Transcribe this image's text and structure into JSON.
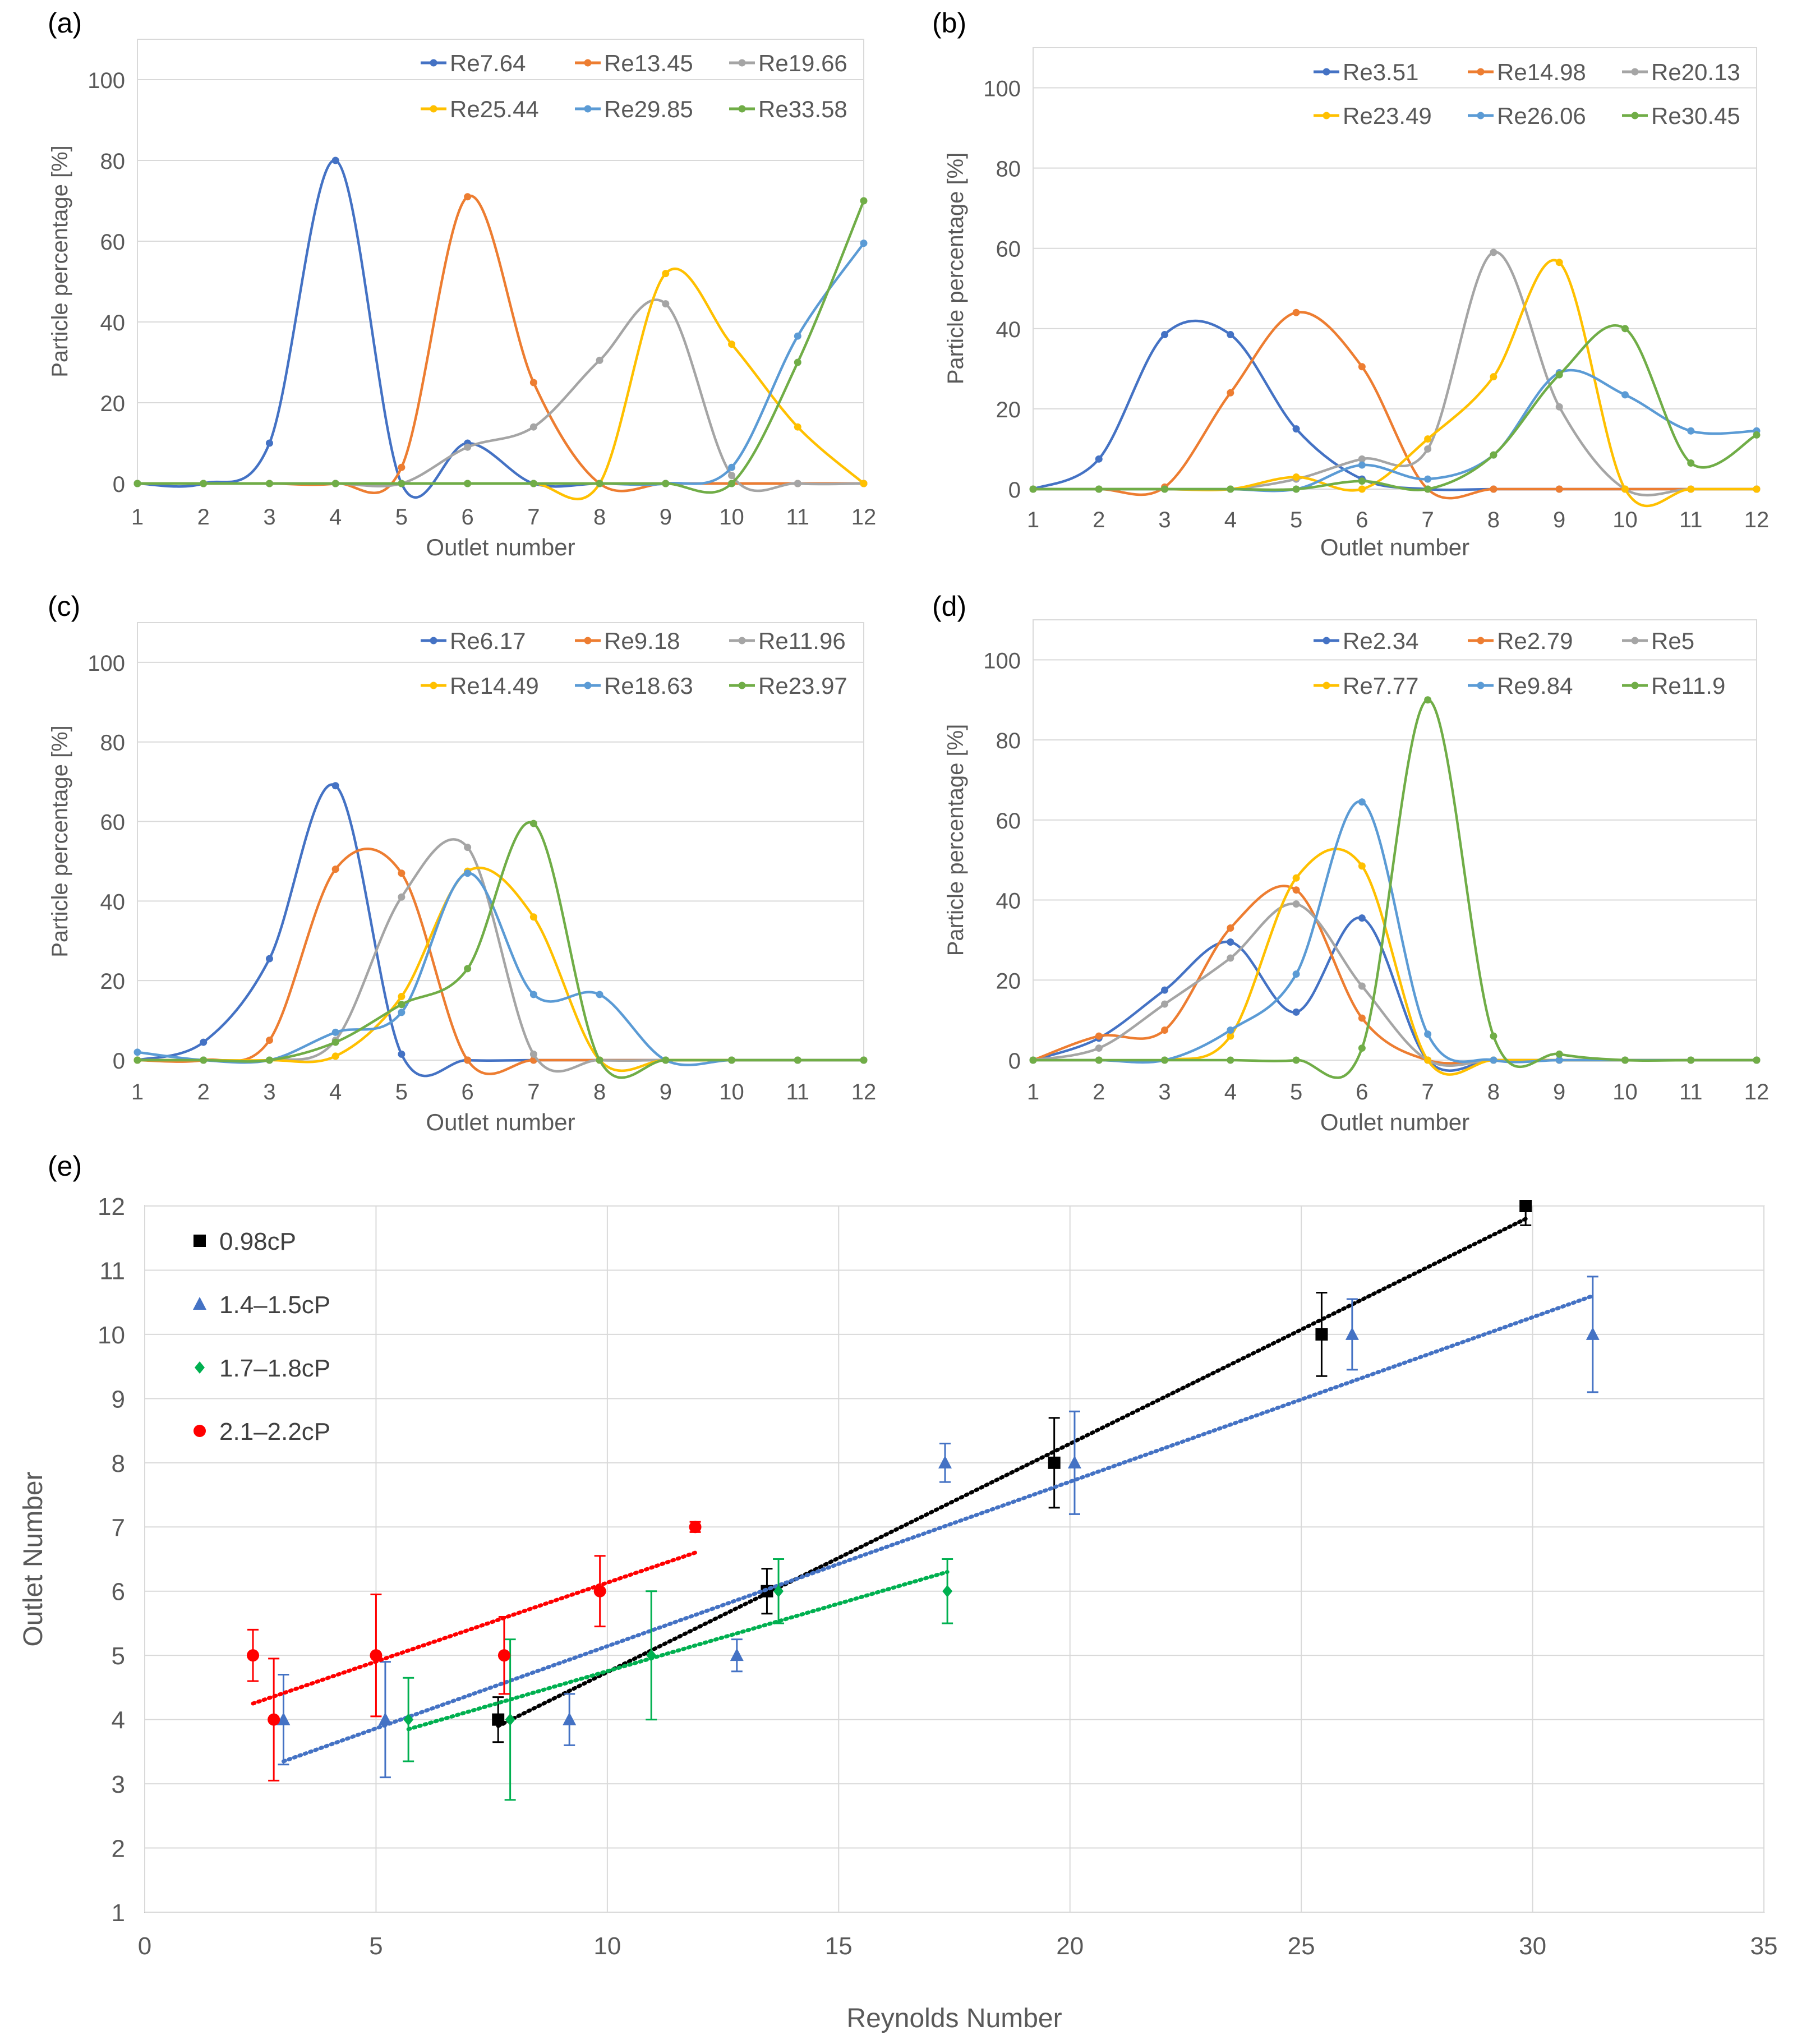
{
  "chart_data": [
    {
      "id": "a",
      "type": "line",
      "panel_label": "(a)",
      "xlabel": "Outlet number",
      "ylabel": "Particle percentage [%]",
      "xlim": [
        1,
        12
      ],
      "ylim": [
        0,
        110
      ],
      "xticks": [
        1,
        2,
        3,
        4,
        5,
        6,
        7,
        8,
        9,
        10,
        11,
        12
      ],
      "yticks": [
        0,
        20,
        40,
        60,
        80,
        100
      ],
      "x": [
        1,
        2,
        3,
        4,
        5,
        6,
        7,
        8,
        9,
        10,
        11,
        12
      ],
      "series": [
        {
          "name": "Re7.64",
          "color": "#4472c4",
          "values": [
            0,
            0,
            10,
            80,
            0,
            10,
            0,
            0,
            0,
            0,
            0,
            0
          ]
        },
        {
          "name": "Re13.45",
          "color": "#ed7d31",
          "values": [
            0,
            0,
            0,
            0,
            4,
            71,
            25,
            0,
            0,
            0,
            0,
            0
          ]
        },
        {
          "name": "Re19.66",
          "color": "#a5a5a5",
          "values": [
            0,
            0,
            0,
            0,
            0,
            9,
            14,
            30.5,
            44.5,
            2,
            0,
            0
          ]
        },
        {
          "name": "Re25.44",
          "color": "#ffc000",
          "values": [
            0,
            0,
            0,
            0,
            0,
            0,
            0,
            0,
            52,
            34.5,
            14,
            0
          ]
        },
        {
          "name": "Re29.85",
          "color": "#5b9bd5",
          "values": [
            0,
            0,
            0,
            0,
            0,
            0,
            0,
            0,
            0,
            4,
            36.5,
            59.5
          ]
        },
        {
          "name": "Re33.58",
          "color": "#70ad47",
          "values": [
            0,
            0,
            0,
            0,
            0,
            0,
            0,
            0,
            0,
            0,
            30,
            70
          ]
        }
      ]
    },
    {
      "id": "b",
      "type": "line",
      "panel_label": "(b)",
      "xlabel": "Outlet number",
      "ylabel": "Particle percentage [%]",
      "xlim": [
        1,
        12
      ],
      "ylim": [
        0,
        110
      ],
      "xticks": [
        1,
        2,
        3,
        4,
        5,
        6,
        7,
        8,
        9,
        10,
        11,
        12
      ],
      "yticks": [
        0,
        20,
        40,
        60,
        80,
        100
      ],
      "x": [
        1,
        2,
        3,
        4,
        5,
        6,
        7,
        8,
        9,
        10,
        11,
        12
      ],
      "series": [
        {
          "name": "Re3.51",
          "color": "#4472c4",
          "values": [
            0,
            7.5,
            38.5,
            38.5,
            15,
            2.5,
            0,
            0,
            0,
            0,
            0,
            0
          ]
        },
        {
          "name": "Re14.98",
          "color": "#ed7d31",
          "values": [
            0,
            0,
            0.5,
            24,
            44,
            30.5,
            0,
            0,
            0,
            0,
            0,
            0
          ]
        },
        {
          "name": "Re20.13",
          "color": "#a5a5a5",
          "values": [
            0,
            0,
            0,
            0,
            2.5,
            7.5,
            10,
            59,
            20.5,
            0,
            0,
            0
          ]
        },
        {
          "name": "Re23.49",
          "color": "#ffc000",
          "values": [
            0,
            0,
            0,
            0,
            3,
            0,
            12.5,
            28,
            56.5,
            0,
            0,
            0
          ]
        },
        {
          "name": "Re26.06",
          "color": "#5b9bd5",
          "values": [
            0,
            0,
            0,
            0,
            0,
            6,
            2.5,
            8.5,
            29,
            23.5,
            14.5,
            14.5
          ]
        },
        {
          "name": "Re30.45",
          "color": "#70ad47",
          "values": [
            0,
            0,
            0,
            0,
            0,
            2,
            0,
            8.5,
            28.5,
            40,
            6.5,
            13.5
          ]
        }
      ]
    },
    {
      "id": "c",
      "type": "line",
      "panel_label": "(c)",
      "xlabel": "Outlet number",
      "ylabel": "Particle percentage [%]",
      "xlim": [
        1,
        12
      ],
      "ylim": [
        0,
        110
      ],
      "xticks": [
        1,
        2,
        3,
        4,
        5,
        6,
        7,
        8,
        9,
        10,
        11,
        12
      ],
      "yticks": [
        0,
        20,
        40,
        60,
        80,
        100
      ],
      "x": [
        1,
        2,
        3,
        4,
        5,
        6,
        7,
        8,
        9,
        10,
        11,
        12
      ],
      "series": [
        {
          "name": "Re6.17",
          "color": "#4472c4",
          "values": [
            0,
            4.5,
            25.5,
            69,
            1.5,
            0,
            0,
            0,
            0,
            0,
            0,
            0
          ]
        },
        {
          "name": "Re9.18",
          "color": "#ed7d31",
          "values": [
            0,
            0,
            5,
            48,
            47,
            0,
            0,
            0,
            0,
            0,
            0,
            0
          ]
        },
        {
          "name": "Re11.96",
          "color": "#a5a5a5",
          "values": [
            0,
            0,
            0,
            5,
            41,
            53.5,
            1.5,
            0,
            0,
            0,
            0,
            0
          ]
        },
        {
          "name": "Re14.49",
          "color": "#ffc000",
          "values": [
            0,
            0,
            0,
            1,
            16,
            47.5,
            36,
            0,
            0,
            0,
            0,
            0
          ]
        },
        {
          "name": "Re18.63",
          "color": "#5b9bd5",
          "values": [
            2,
            0,
            0,
            7,
            12,
            47,
            16.5,
            16.5,
            0,
            0,
            0,
            0
          ]
        },
        {
          "name": "Re23.97",
          "color": "#70ad47",
          "values": [
            0,
            0,
            0,
            4.5,
            14,
            23,
            59.5,
            0,
            0,
            0,
            0,
            0
          ]
        }
      ]
    },
    {
      "id": "d",
      "type": "line",
      "panel_label": "(d)",
      "xlabel": "Outlet number",
      "ylabel": "Particle percentage [%]",
      "xlim": [
        1,
        12
      ],
      "ylim": [
        0,
        110
      ],
      "xticks": [
        1,
        2,
        3,
        4,
        5,
        6,
        7,
        8,
        9,
        10,
        11,
        12
      ],
      "yticks": [
        0,
        20,
        40,
        60,
        80,
        100
      ],
      "x": [
        1,
        2,
        3,
        4,
        5,
        6,
        7,
        8,
        9,
        10,
        11,
        12
      ],
      "series": [
        {
          "name": "Re2.34",
          "color": "#4472c4",
          "values": [
            0,
            5.5,
            17.5,
            29.5,
            12,
            35.5,
            0,
            0,
            0,
            0,
            0,
            0
          ]
        },
        {
          "name": "Re2.79",
          "color": "#ed7d31",
          "values": [
            0,
            6,
            7.5,
            33,
            42.5,
            10.5,
            0,
            0,
            0,
            0,
            0,
            0
          ]
        },
        {
          "name": "Re5",
          "color": "#a5a5a5",
          "values": [
            0,
            3,
            14,
            25.5,
            39,
            18.5,
            0,
            0,
            0,
            0,
            0,
            0
          ]
        },
        {
          "name": "Re7.77",
          "color": "#ffc000",
          "values": [
            0,
            0,
            0,
            6,
            45.5,
            48.5,
            0,
            0,
            0,
            0,
            0,
            0
          ]
        },
        {
          "name": "Re9.84",
          "color": "#5b9bd5",
          "values": [
            0,
            0,
            0,
            7.5,
            21.5,
            64.5,
            6.5,
            0,
            0,
            0,
            0,
            0
          ]
        },
        {
          "name": "Re11.9",
          "color": "#70ad47",
          "values": [
            0,
            0,
            0,
            0,
            0,
            3,
            90,
            6,
            1.5,
            0,
            0,
            0
          ]
        }
      ]
    },
    {
      "id": "e",
      "type": "scatter",
      "panel_label": "(e)",
      "xlabel": "Reynolds Number",
      "ylabel": "Outlet Number",
      "xlim": [
        0,
        35
      ],
      "ylim": [
        1,
        12
      ],
      "xticks": [
        0,
        5,
        10,
        15,
        20,
        25,
        30,
        35
      ],
      "yticks": [
        1,
        2,
        3,
        4,
        5,
        6,
        7,
        8,
        9,
        10,
        11,
        12
      ],
      "series": [
        {
          "name": "0.98cP",
          "color": "#000000",
          "marker": "square",
          "points": [
            {
              "x": 7.64,
              "y": 4,
              "err": 0.35
            },
            {
              "x": 13.45,
              "y": 6,
              "err": 0.35
            },
            {
              "x": 19.66,
              "y": 8,
              "err": 0.7
            },
            {
              "x": 25.44,
              "y": 10,
              "err": 0.65
            },
            {
              "x": 29.85,
              "y": 12,
              "err": 0.3,
              "err_low_only": true
            }
          ],
          "trend": {
            "x1": 7.64,
            "x2": 29.85,
            "y1": 3.9,
            "y2": 11.8
          }
        },
        {
          "name": "1.4–1.5cP",
          "color": "#4472c4",
          "marker": "triangle",
          "points": [
            {
              "x": 3.0,
              "y": 4,
              "err": 0.7
            },
            {
              "x": 5.2,
              "y": 4,
              "err": 0.9
            },
            {
              "x": 9.18,
              "y": 4,
              "err": 0.4
            },
            {
              "x": 12.8,
              "y": 5,
              "err": 0.25
            },
            {
              "x": 17.3,
              "y": 8,
              "err": 0.3
            },
            {
              "x": 20.1,
              "y": 8,
              "err": 0.8
            },
            {
              "x": 26.1,
              "y": 10,
              "err": 0.55
            },
            {
              "x": 31.3,
              "y": 10,
              "err": 0.9
            }
          ],
          "trend": {
            "x1": 3.0,
            "x2": 31.3,
            "y1": 3.35,
            "y2": 10.6
          }
        },
        {
          "name": "1.7–1.8cP",
          "color": "#00b050",
          "marker": "diamond",
          "points": [
            {
              "x": 5.7,
              "y": 4,
              "err": 0.65
            },
            {
              "x": 7.9,
              "y": 4,
              "err": 1.25
            },
            {
              "x": 10.95,
              "y": 5,
              "err": 1.0
            },
            {
              "x": 13.7,
              "y": 6,
              "err": 0.5
            },
            {
              "x": 17.35,
              "y": 6,
              "err": 0.5
            }
          ],
          "trend": {
            "x1": 5.7,
            "x2": 17.35,
            "y1": 3.85,
            "y2": 6.3
          }
        },
        {
          "name": "2.1–2.2cP",
          "color": "#ff0000",
          "marker": "circle",
          "points": [
            {
              "x": 2.34,
              "y": 5,
              "err": 0.4
            },
            {
              "x": 2.79,
              "y": 4,
              "err": 0.95
            },
            {
              "x": 5.0,
              "y": 5,
              "err": 0.95
            },
            {
              "x": 7.77,
              "y": 5,
              "err": 0.6
            },
            {
              "x": 9.84,
              "y": 6,
              "err": 0.55
            },
            {
              "x": 11.9,
              "y": 7,
              "err": 0.08
            }
          ],
          "trend": {
            "x1": 2.34,
            "x2": 11.9,
            "y1": 4.25,
            "y2": 6.6
          }
        }
      ]
    }
  ]
}
